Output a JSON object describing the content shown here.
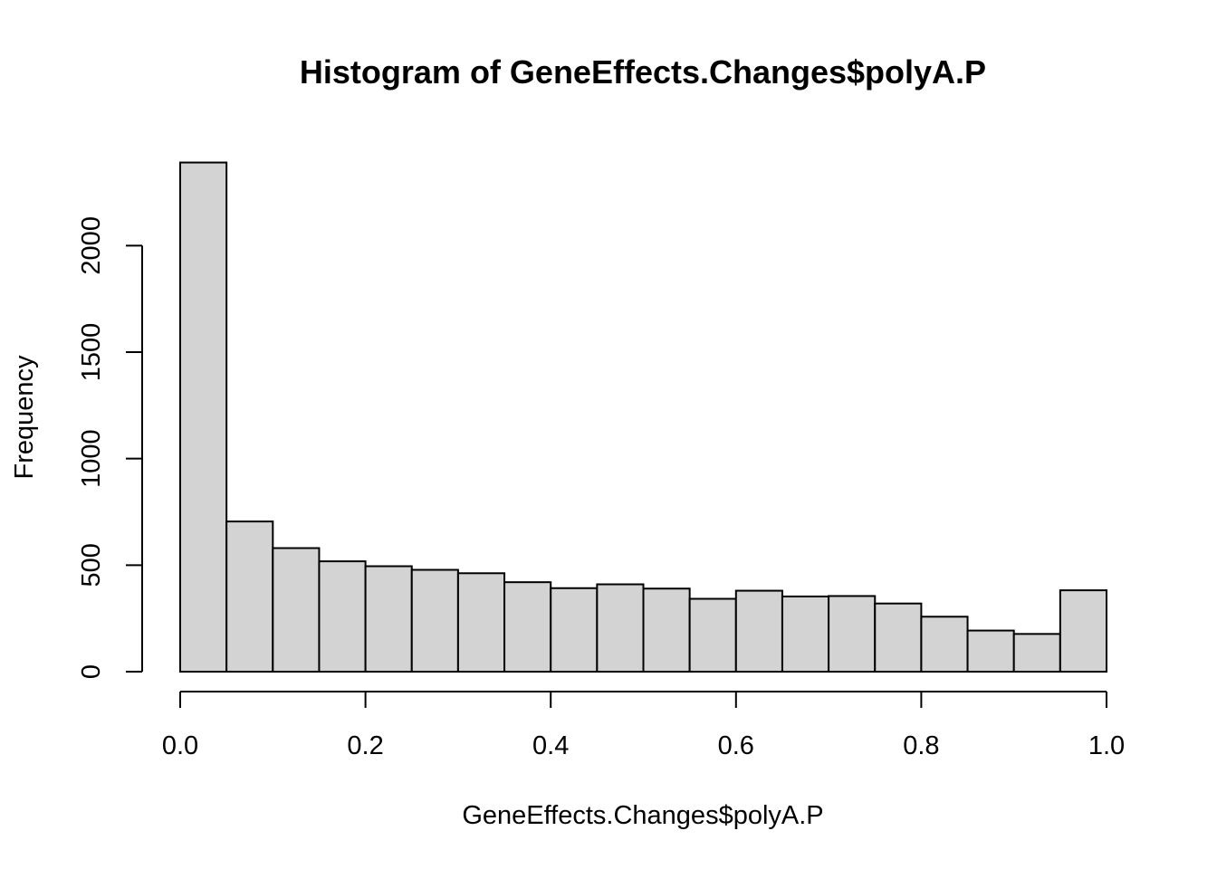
{
  "chart_data": {
    "type": "bar",
    "title": "Histogram of GeneEffects.Changes$polyA.P",
    "xlabel": "GeneEffects.Changes$polyA.P",
    "ylabel": "Frequency",
    "bin_edges": [
      0.0,
      0.05,
      0.1,
      0.15,
      0.2,
      0.25,
      0.3,
      0.35,
      0.4,
      0.45,
      0.5,
      0.55,
      0.6,
      0.65,
      0.7,
      0.75,
      0.8,
      0.85,
      0.9,
      0.95,
      1.0
    ],
    "values": [
      2390,
      705,
      580,
      518,
      495,
      478,
      462,
      420,
      392,
      410,
      390,
      342,
      380,
      353,
      355,
      320,
      258,
      193,
      177,
      382
    ],
    "xlim": [
      0.0,
      1.0
    ],
    "ylim": [
      0,
      2390
    ],
    "x_ticks": [
      "0.0",
      "0.2",
      "0.4",
      "0.6",
      "0.8",
      "1.0"
    ],
    "y_ticks": [
      "0",
      "500",
      "1000",
      "1500",
      "2000"
    ],
    "bar_fill": "#d3d3d3",
    "bar_stroke": "#000000",
    "grid": false,
    "legend": "none"
  }
}
